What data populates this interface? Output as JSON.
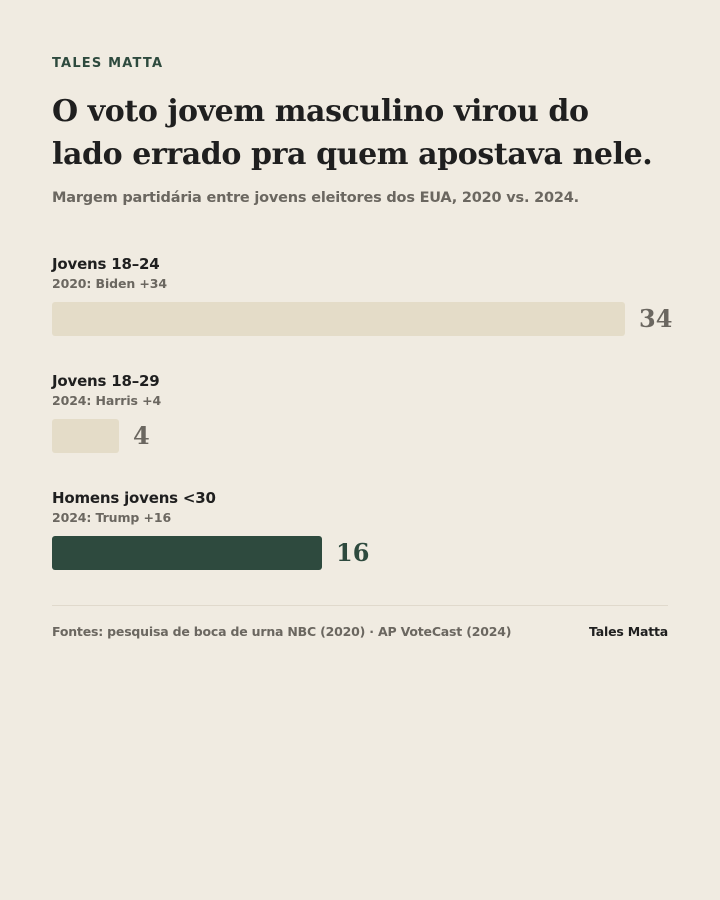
{
  "header": {
    "kicker": "TALES MATTA",
    "title": "O voto jovem masculino virou do lado errado pra quem apostava nele.",
    "subtitle": "Margem partidária entre jovens eleitores dos EUA, 2020 vs. 2024."
  },
  "chart_data": {
    "type": "bar",
    "orientation": "horizontal",
    "title": "O voto jovem masculino virou do lado errado pra quem apostava nele.",
    "subtitle": "Margem partidária entre jovens eleitores dos EUA, 2020 vs. 2024.",
    "categories": [
      "Jovens 18–24",
      "Jovens 18–29",
      "Homens jovens <30"
    ],
    "notes": [
      "2020: Biden +34",
      "2024: Harris +4",
      "2024: Trump +16"
    ],
    "values": [
      34,
      4,
      16
    ],
    "value_labels": [
      "34",
      "4",
      "16"
    ],
    "xlim": [
      0,
      34
    ],
    "grid": false,
    "colors": {
      "bars": [
        "#e4dcc8",
        "#e4dcc8",
        "#2e4a3e"
      ],
      "labels": [
        "#6b6760",
        "#6b6760",
        "#2e4a3e"
      ]
    }
  },
  "footer": {
    "source": "Fontes: pesquisa de boca de urna NBC (2020) · AP VoteCast (2024)",
    "brand": "Tales Matta"
  }
}
